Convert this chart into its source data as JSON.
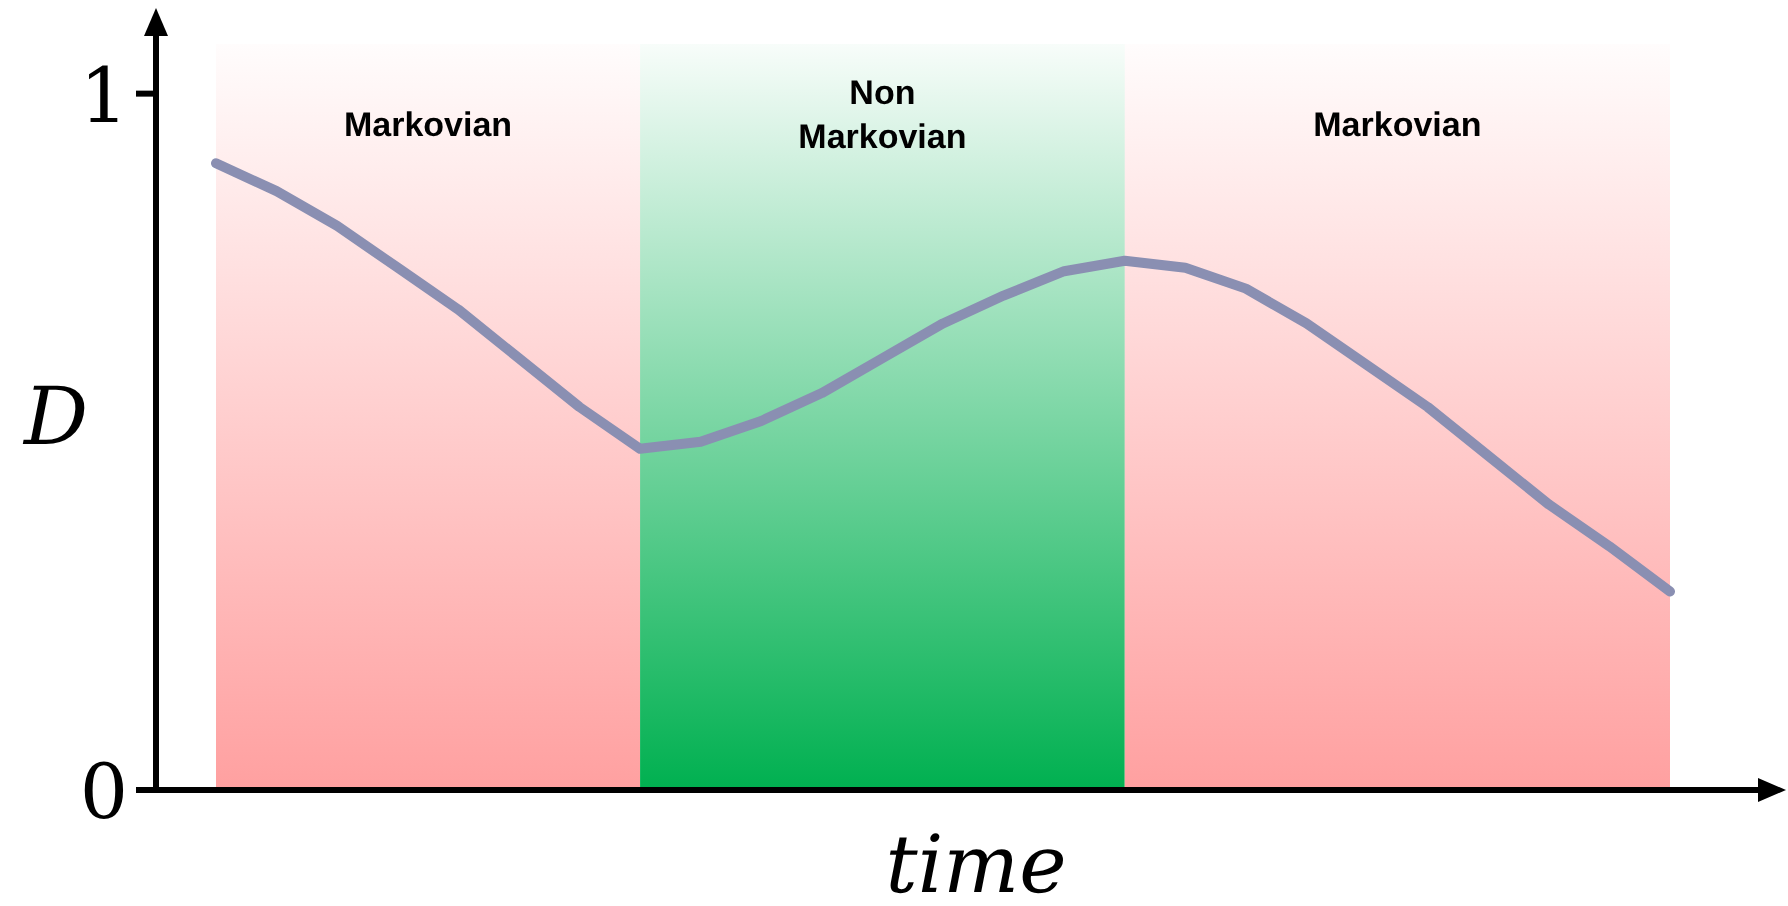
{
  "chart_data": {
    "type": "line",
    "xlabel": "time",
    "ylabel": "D",
    "ylim": [
      0,
      1.1
    ],
    "yticks": [
      0,
      1
    ],
    "tick_labels": "y",
    "grid": false,
    "marker": "none",
    "line_style": "solid",
    "categories": [
      null,
      null,
      null,
      null,
      null,
      null,
      null,
      null,
      null,
      null,
      null,
      null,
      null,
      null,
      null,
      null,
      null,
      null,
      null,
      null,
      null,
      null,
      null,
      null,
      null
    ],
    "series": [
      {
        "color": "#8a8fb2",
        "values": [
          0.9,
          0.86,
          0.81,
          0.75,
          0.69,
          0.62,
          0.55,
          0.49,
          0.5,
          0.53,
          0.57,
          0.62,
          0.67,
          0.71,
          0.745,
          0.76,
          0.75,
          0.72,
          0.67,
          0.61,
          0.55,
          0.48,
          0.41,
          0.35,
          0.285
        ]
      }
    ],
    "annotations": [
      "Markovian",
      "Non Markovian",
      "Markovian"
    ]
  }
}
